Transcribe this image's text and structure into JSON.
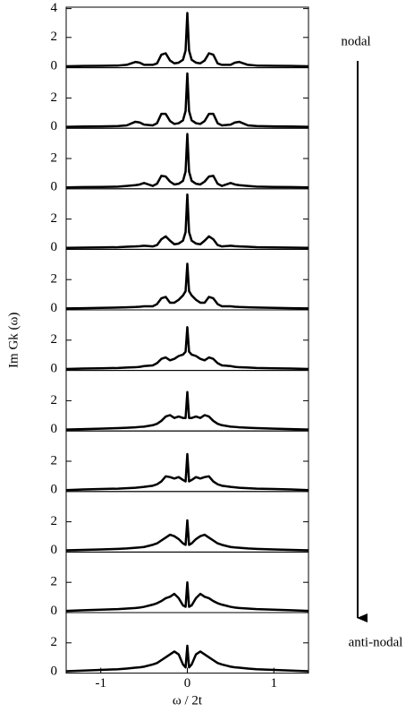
{
  "chart_data": [
    {
      "type": "line",
      "annotation": "nodal",
      "color": "#000000",
      "xlim": [
        -1.4,
        1.4
      ],
      "ylim": [
        -0.1,
        4.1
      ],
      "yticks": [
        0,
        2,
        4
      ],
      "x": [
        -1.4,
        -1.2,
        -1.0,
        -0.8,
        -0.7,
        -0.6,
        -0.55,
        -0.5,
        -0.4,
        -0.35,
        -0.3,
        -0.25,
        -0.2,
        -0.15,
        -0.1,
        -0.05,
        -0.02,
        0,
        0.02,
        0.05,
        0.1,
        0.15,
        0.2,
        0.25,
        0.3,
        0.35,
        0.4,
        0.5,
        0.55,
        0.6,
        0.7,
        0.8,
        1.0,
        1.2,
        1.4
      ],
      "values": [
        0,
        0.02,
        0.03,
        0.05,
        0.1,
        0.3,
        0.25,
        0.1,
        0.1,
        0.2,
        0.8,
        0.9,
        0.4,
        0.2,
        0.25,
        0.45,
        1.1,
        3.7,
        1.1,
        0.45,
        0.25,
        0.2,
        0.4,
        0.9,
        0.8,
        0.2,
        0.1,
        0.1,
        0.25,
        0.3,
        0.1,
        0.05,
        0.03,
        0.02,
        0
      ]
    },
    {
      "type": "line",
      "color": "#000000",
      "xlim": [
        -1.4,
        1.4
      ],
      "ylim": [
        -0.1,
        4.1
      ],
      "yticks": [
        0,
        2
      ],
      "x": [
        -1.4,
        -1.2,
        -1.0,
        -0.8,
        -0.7,
        -0.6,
        -0.55,
        -0.5,
        -0.4,
        -0.35,
        -0.3,
        -0.25,
        -0.2,
        -0.15,
        -0.1,
        -0.05,
        -0.02,
        0,
        0.02,
        0.05,
        0.1,
        0.15,
        0.2,
        0.25,
        0.3,
        0.35,
        0.4,
        0.5,
        0.55,
        0.6,
        0.7,
        0.8,
        1.0,
        1.2,
        1.4
      ],
      "values": [
        0,
        0.02,
        0.03,
        0.05,
        0.1,
        0.35,
        0.3,
        0.15,
        0.1,
        0.25,
        0.9,
        0.9,
        0.4,
        0.2,
        0.25,
        0.45,
        1.1,
        3.7,
        1.1,
        0.45,
        0.25,
        0.2,
        0.4,
        0.9,
        0.9,
        0.25,
        0.1,
        0.15,
        0.3,
        0.35,
        0.1,
        0.05,
        0.03,
        0.02,
        0
      ]
    },
    {
      "type": "line",
      "color": "#000000",
      "xlim": [
        -1.4,
        1.4
      ],
      "ylim": [
        -0.1,
        4.1
      ],
      "yticks": [
        0,
        2
      ],
      "x": [
        -1.4,
        -1.2,
        -1.0,
        -0.8,
        -0.7,
        -0.6,
        -0.55,
        -0.5,
        -0.4,
        -0.35,
        -0.3,
        -0.25,
        -0.2,
        -0.15,
        -0.1,
        -0.05,
        -0.02,
        0,
        0.02,
        0.05,
        0.1,
        0.15,
        0.2,
        0.25,
        0.3,
        0.35,
        0.4,
        0.5,
        0.55,
        0.6,
        0.7,
        0.8,
        1.0,
        1.2,
        1.4
      ],
      "values": [
        0,
        0.02,
        0.03,
        0.05,
        0.1,
        0.15,
        0.2,
        0.3,
        0.1,
        0.25,
        0.8,
        0.75,
        0.4,
        0.2,
        0.25,
        0.45,
        1.1,
        3.7,
        1.1,
        0.45,
        0.25,
        0.2,
        0.4,
        0.75,
        0.8,
        0.25,
        0.1,
        0.3,
        0.2,
        0.15,
        0.1,
        0.05,
        0.03,
        0.02,
        0
      ]
    },
    {
      "type": "line",
      "color": "#000000",
      "xlim": [
        -1.4,
        1.4
      ],
      "ylim": [
        -0.1,
        4.1
      ],
      "yticks": [
        0,
        2
      ],
      "x": [
        -1.4,
        -1.2,
        -1.0,
        -0.8,
        -0.7,
        -0.6,
        -0.55,
        -0.5,
        -0.4,
        -0.35,
        -0.3,
        -0.25,
        -0.2,
        -0.15,
        -0.1,
        -0.05,
        -0.02,
        0,
        0.02,
        0.05,
        0.1,
        0.15,
        0.2,
        0.25,
        0.3,
        0.35,
        0.4,
        0.5,
        0.55,
        0.6,
        0.7,
        0.8,
        1.0,
        1.2,
        1.4
      ],
      "values": [
        0,
        0.02,
        0.03,
        0.05,
        0.08,
        0.1,
        0.12,
        0.15,
        0.1,
        0.2,
        0.6,
        0.8,
        0.5,
        0.25,
        0.3,
        0.5,
        1.1,
        3.7,
        1.1,
        0.5,
        0.3,
        0.25,
        0.5,
        0.8,
        0.6,
        0.2,
        0.1,
        0.15,
        0.12,
        0.1,
        0.08,
        0.05,
        0.03,
        0.02,
        0
      ]
    },
    {
      "type": "line",
      "color": "#000000",
      "xlim": [
        -1.4,
        1.4
      ],
      "ylim": [
        -0.1,
        4.1
      ],
      "yticks": [
        0,
        2
      ],
      "x": [
        -1.4,
        -1.2,
        -1.0,
        -0.8,
        -0.7,
        -0.6,
        -0.55,
        -0.5,
        -0.4,
        -0.35,
        -0.3,
        -0.25,
        -0.2,
        -0.15,
        -0.1,
        -0.05,
        -0.02,
        0,
        0.02,
        0.05,
        0.1,
        0.15,
        0.2,
        0.25,
        0.3,
        0.35,
        0.4,
        0.5,
        0.55,
        0.6,
        0.7,
        0.8,
        1.0,
        1.2,
        1.4
      ],
      "values": [
        0,
        0.02,
        0.04,
        0.06,
        0.08,
        0.1,
        0.12,
        0.15,
        0.15,
        0.3,
        0.7,
        0.8,
        0.4,
        0.4,
        0.6,
        0.9,
        1.2,
        3.1,
        1.2,
        0.9,
        0.6,
        0.4,
        0.4,
        0.8,
        0.7,
        0.3,
        0.15,
        0.15,
        0.12,
        0.1,
        0.08,
        0.06,
        0.04,
        0.02,
        0
      ]
    },
    {
      "type": "line",
      "ylabel": "Im Gk (ω)",
      "color": "#000000",
      "xlim": [
        -1.4,
        1.4
      ],
      "ylim": [
        -0.1,
        4.1
      ],
      "yticks": [
        0,
        2
      ],
      "x": [
        -1.4,
        -1.2,
        -1.0,
        -0.8,
        -0.7,
        -0.6,
        -0.55,
        -0.5,
        -0.4,
        -0.35,
        -0.3,
        -0.25,
        -0.2,
        -0.15,
        -0.1,
        -0.05,
        -0.02,
        0,
        0.02,
        0.05,
        0.1,
        0.15,
        0.2,
        0.25,
        0.3,
        0.35,
        0.4,
        0.5,
        0.55,
        0.6,
        0.7,
        0.8,
        1.0,
        1.2,
        1.4
      ],
      "values": [
        0,
        0.03,
        0.05,
        0.07,
        0.1,
        0.12,
        0.15,
        0.2,
        0.25,
        0.4,
        0.7,
        0.8,
        0.6,
        0.7,
        0.9,
        1.0,
        1.2,
        2.9,
        1.2,
        1.0,
        0.9,
        0.7,
        0.6,
        0.8,
        0.7,
        0.4,
        0.25,
        0.2,
        0.15,
        0.12,
        0.1,
        0.07,
        0.05,
        0.03,
        0
      ]
    },
    {
      "type": "line",
      "color": "#000000",
      "xlim": [
        -1.4,
        1.4
      ],
      "ylim": [
        -0.1,
        4.1
      ],
      "yticks": [
        0,
        2
      ],
      "x": [
        -1.4,
        -1.2,
        -1.0,
        -0.8,
        -0.7,
        -0.6,
        -0.55,
        -0.5,
        -0.4,
        -0.35,
        -0.3,
        -0.25,
        -0.2,
        -0.15,
        -0.1,
        -0.05,
        -0.02,
        0,
        0.02,
        0.05,
        0.1,
        0.15,
        0.2,
        0.25,
        0.3,
        0.35,
        0.4,
        0.5,
        0.55,
        0.6,
        0.7,
        0.8,
        1.0,
        1.2,
        1.4
      ],
      "values": [
        0,
        0.03,
        0.06,
        0.1,
        0.12,
        0.15,
        0.18,
        0.2,
        0.3,
        0.4,
        0.6,
        0.9,
        1.0,
        0.8,
        0.9,
        0.8,
        0.8,
        2.6,
        0.8,
        0.8,
        0.9,
        0.8,
        1.0,
        0.9,
        0.6,
        0.4,
        0.3,
        0.2,
        0.18,
        0.15,
        0.12,
        0.1,
        0.06,
        0.03,
        0
      ]
    },
    {
      "type": "line",
      "color": "#000000",
      "xlim": [
        -1.4,
        1.4
      ],
      "ylim": [
        -0.1,
        4.1
      ],
      "yticks": [
        0,
        2
      ],
      "x": [
        -1.4,
        -1.2,
        -1.0,
        -0.8,
        -0.7,
        -0.6,
        -0.55,
        -0.5,
        -0.4,
        -0.35,
        -0.3,
        -0.25,
        -0.2,
        -0.15,
        -0.1,
        -0.05,
        -0.02,
        0,
        0.02,
        0.05,
        0.1,
        0.15,
        0.2,
        0.25,
        0.3,
        0.35,
        0.4,
        0.5,
        0.55,
        0.6,
        0.7,
        0.8,
        1.0,
        1.2,
        1.4
      ],
      "values": [
        0,
        0.04,
        0.07,
        0.1,
        0.13,
        0.16,
        0.19,
        0.22,
        0.3,
        0.4,
        0.6,
        0.95,
        0.9,
        0.8,
        0.9,
        0.7,
        0.6,
        2.5,
        0.6,
        0.7,
        0.9,
        0.8,
        0.9,
        0.95,
        0.6,
        0.4,
        0.3,
        0.22,
        0.19,
        0.16,
        0.13,
        0.1,
        0.07,
        0.04,
        0
      ]
    },
    {
      "type": "line",
      "color": "#000000",
      "xlim": [
        -1.4,
        1.4
      ],
      "ylim": [
        -0.1,
        4.1
      ],
      "yticks": [
        0,
        2
      ],
      "x": [
        -1.4,
        -1.2,
        -1.0,
        -0.8,
        -0.7,
        -0.6,
        -0.55,
        -0.5,
        -0.4,
        -0.35,
        -0.3,
        -0.25,
        -0.2,
        -0.15,
        -0.1,
        -0.05,
        -0.02,
        0,
        0.02,
        0.05,
        0.1,
        0.15,
        0.2,
        0.25,
        0.3,
        0.35,
        0.4,
        0.5,
        0.55,
        0.6,
        0.7,
        0.8,
        1.0,
        1.2,
        1.4
      ],
      "values": [
        0.02,
        0.05,
        0.08,
        0.12,
        0.15,
        0.2,
        0.22,
        0.25,
        0.4,
        0.5,
        0.7,
        0.9,
        1.1,
        1.0,
        0.8,
        0.5,
        0.4,
        2.1,
        0.4,
        0.5,
        0.8,
        1.0,
        1.1,
        0.9,
        0.7,
        0.5,
        0.4,
        0.25,
        0.22,
        0.2,
        0.15,
        0.12,
        0.08,
        0.05,
        0.02
      ]
    },
    {
      "type": "line",
      "color": "#000000",
      "xlim": [
        -1.4,
        1.4
      ],
      "ylim": [
        -0.1,
        4.1
      ],
      "yticks": [
        0,
        2
      ],
      "x": [
        -1.4,
        -1.2,
        -1.0,
        -0.8,
        -0.7,
        -0.6,
        -0.55,
        -0.5,
        -0.4,
        -0.35,
        -0.3,
        -0.25,
        -0.2,
        -0.15,
        -0.1,
        -0.05,
        -0.02,
        0,
        0.02,
        0.05,
        0.1,
        0.15,
        0.2,
        0.25,
        0.3,
        0.35,
        0.4,
        0.5,
        0.55,
        0.6,
        0.7,
        0.8,
        1.0,
        1.2,
        1.4
      ],
      "values": [
        0.02,
        0.06,
        0.1,
        0.14,
        0.18,
        0.22,
        0.25,
        0.3,
        0.45,
        0.55,
        0.7,
        0.9,
        1.0,
        1.2,
        0.9,
        0.4,
        0.3,
        2.0,
        0.3,
        0.4,
        0.9,
        1.2,
        1.0,
        0.9,
        0.7,
        0.55,
        0.45,
        0.3,
        0.25,
        0.22,
        0.18,
        0.14,
        0.1,
        0.06,
        0.02
      ]
    },
    {
      "type": "line",
      "annotation": "anti-nodal",
      "xlabel": "ω / 2t",
      "color": "#000000",
      "xlim": [
        -1.4,
        1.4
      ],
      "ylim": [
        -0.1,
        4.1
      ],
      "yticks": [
        0,
        2
      ],
      "xticks": [
        -1,
        0,
        1
      ],
      "x": [
        -1.4,
        -1.2,
        -1.0,
        -0.8,
        -0.7,
        -0.6,
        -0.55,
        -0.5,
        -0.4,
        -0.35,
        -0.3,
        -0.25,
        -0.2,
        -0.15,
        -0.1,
        -0.05,
        -0.02,
        0,
        0.02,
        0.05,
        0.1,
        0.15,
        0.2,
        0.25,
        0.3,
        0.35,
        0.4,
        0.5,
        0.55,
        0.6,
        0.7,
        0.8,
        1.0,
        1.2,
        1.4
      ],
      "values": [
        0.03,
        0.08,
        0.12,
        0.17,
        0.22,
        0.28,
        0.3,
        0.35,
        0.5,
        0.6,
        0.8,
        1.0,
        1.2,
        1.4,
        1.2,
        0.5,
        0.3,
        1.8,
        0.3,
        0.5,
        1.2,
        1.4,
        1.2,
        1.0,
        0.8,
        0.6,
        0.5,
        0.35,
        0.3,
        0.28,
        0.22,
        0.17,
        0.12,
        0.08,
        0.03
      ]
    }
  ]
}
